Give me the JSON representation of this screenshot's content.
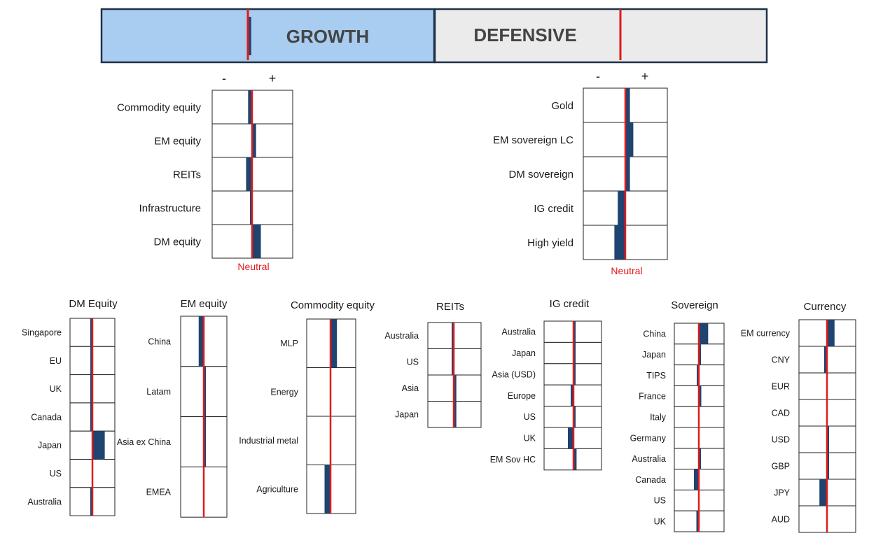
{
  "colors": {
    "neutral_line": "#e01b1b",
    "bar": "#1f4470",
    "growth_bg": "#a9cdf0",
    "defensive_bg": "#ebebeb",
    "border": "#1f3148"
  },
  "header": {
    "growth": {
      "label": "GROWTH",
      "position": 0.02
    },
    "defensive": {
      "label": "DEFENSIVE",
      "position": 0.0
    }
  },
  "scale": {
    "minus": "-",
    "plus": "+",
    "neutral": "Neutral"
  },
  "chart_data": [
    {
      "type": "bar",
      "panel": "growth",
      "categories": [
        "Commodity equity",
        "EM equity",
        "REITs",
        "Infrastructure",
        "DM equity"
      ],
      "values": [
        -0.1,
        0.1,
        -0.15,
        -0.04,
        0.22
      ],
      "xlim": [
        -1,
        1
      ],
      "neutral": 0
    },
    {
      "type": "bar",
      "panel": "defensive",
      "categories": [
        "Gold",
        "EM sovereign LC",
        "DM sovereign",
        "IG credit",
        "High yield"
      ],
      "values": [
        0.11,
        0.19,
        0.11,
        -0.18,
        -0.26
      ],
      "xlim": [
        -1,
        1
      ],
      "neutral": 0
    },
    {
      "type": "bar",
      "title": "DM Equity",
      "categories": [
        "Singapore",
        "EU",
        "UK",
        "Canada",
        "Japan",
        "US",
        "Australia"
      ],
      "values": [
        -0.1,
        -0.02,
        -0.1,
        -0.1,
        0.55,
        0,
        -0.1
      ],
      "xlim": [
        -1,
        1
      ],
      "neutral": 0
    },
    {
      "type": "bar",
      "title": "EM equity",
      "categories": [
        "China",
        "Latam",
        "Asia ex China",
        "EMEA"
      ],
      "values": [
        -0.22,
        0.08,
        0.08,
        0
      ],
      "xlim": [
        -1,
        1
      ],
      "neutral": 0
    },
    {
      "type": "bar",
      "title": "Commodity equity",
      "categories": [
        "MLP",
        "Energy",
        "Industrial metal",
        "Agriculture"
      ],
      "values": [
        0.27,
        0,
        0,
        -0.25
      ],
      "xlim": [
        -1,
        1
      ],
      "neutral": 0
    },
    {
      "type": "bar",
      "title": "REITs",
      "categories": [
        "Australia",
        "US",
        "Asia",
        "Japan"
      ],
      "values": [
        -0.06,
        -0.06,
        0.1,
        0.1
      ],
      "xlim": [
        -1,
        1
      ],
      "neutral": 0
    },
    {
      "type": "bar",
      "title": "IG credit",
      "categories": [
        "Australia",
        "Japan",
        "Asia (USD)",
        "Europe",
        "US",
        "UK",
        "EM Sov HC"
      ],
      "values": [
        0.02,
        0.02,
        0.02,
        -0.1,
        0.02,
        -0.2,
        0.11
      ],
      "xlim": [
        -1,
        1
      ],
      "neutral": 0
    },
    {
      "type": "bar",
      "title": "Sovereign",
      "categories": [
        "China",
        "Japan",
        "TIPS",
        "France",
        "Italy",
        "Germany",
        "Australia",
        "Canada",
        "US",
        "UK"
      ],
      "values": [
        0.38,
        0.01,
        -0.03,
        0.1,
        0,
        0,
        0.05,
        -0.2,
        0,
        -0.1
      ],
      "xlim": [
        -1,
        1
      ],
      "neutral": 0
    },
    {
      "type": "bar",
      "title": "Currency",
      "categories": [
        "EM currency",
        "CNY",
        "EUR",
        "CAD",
        "USD",
        "GBP",
        "JPY",
        "AUD"
      ],
      "values": [
        0.27,
        -0.1,
        0,
        0,
        0.04,
        0.04,
        -0.27,
        0
      ],
      "xlim": [
        -1,
        1
      ],
      "neutral": 0
    }
  ]
}
